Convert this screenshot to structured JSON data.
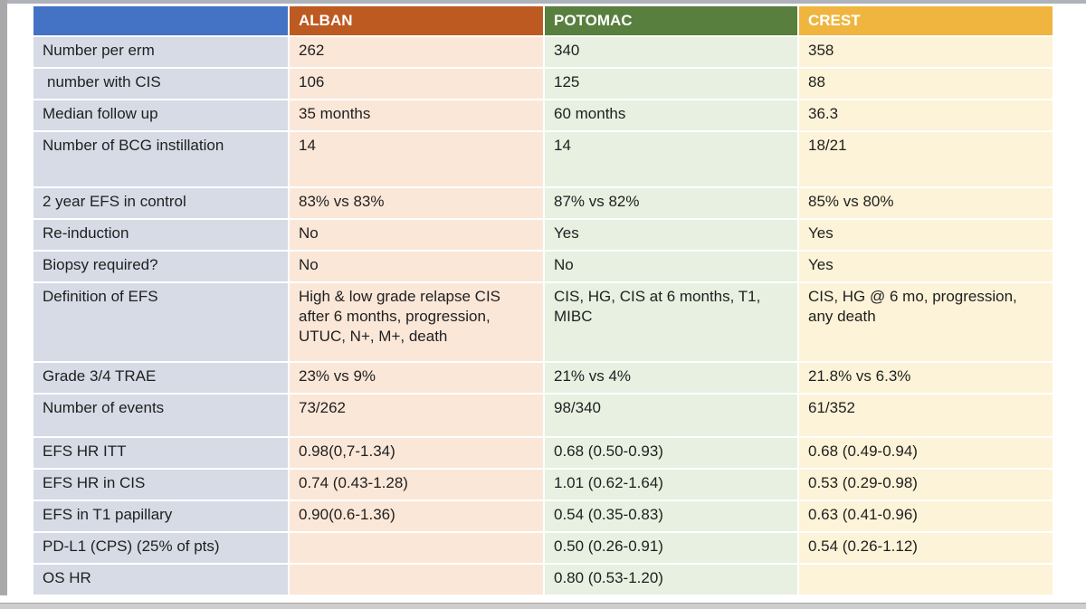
{
  "colors": {
    "header_blank": "#4472c4",
    "alban": "#bd5a21",
    "potomac": "#587f3e",
    "crest": "#f0b53f",
    "label_bg": "#d6dbe6",
    "alban_bg": "#fbe7d8",
    "potomac_bg": "#e7f0e1",
    "crest_bg": "#fdf3d8"
  },
  "table": {
    "columns": [
      "",
      "ALBAN",
      "POTOMAC",
      "CREST"
    ],
    "rows": [
      {
        "label": "Number per erm",
        "alban": "262",
        "potomac": "340",
        "crest": "358"
      },
      {
        "label": " number with CIS",
        "alban": "106",
        "potomac": "125",
        "crest": "88"
      },
      {
        "label": "Median follow up",
        "alban": "35 months",
        "potomac": "60 months",
        "crest": "36.3"
      },
      {
        "label": "Number of BCG instillation",
        "alban": "14",
        "potomac": "14",
        "crest": "18/21"
      },
      {
        "label": "2 year EFS in control",
        "alban": "83% vs 83%",
        "potomac": "87% vs 82%",
        "crest": "85% vs 80%"
      },
      {
        "label": "Re-induction",
        "alban": "No",
        "potomac": "Yes",
        "crest": "Yes"
      },
      {
        "label": "Biopsy required?",
        "alban": "No",
        "potomac": "No",
        "crest": "Yes"
      },
      {
        "label": "Definition of EFS",
        "alban": "High & low grade relapse  CIS\nafter 6 months, progression,\nUTUC, N+, M+, death",
        "potomac": "CIS, HG, CIS at 6 months, T1,\nMIBC",
        "crest": "CIS, HG @ 6 mo, progression,\nany death"
      },
      {
        "label": "Grade 3/4 TRAE",
        "alban": "23% vs 9%",
        "potomac": "21% vs 4%",
        "crest": "21.8% vs 6.3%"
      },
      {
        "label": "Number of events",
        "alban": "73/262",
        "potomac": "98/340",
        "crest": "61/352"
      },
      {
        "label": "EFS HR ITT",
        "alban": "0.98(0,7-1.34)",
        "potomac": "0.68 (0.50-0.93)",
        "crest": "0.68 (0.49-0.94)"
      },
      {
        "label": "EFS HR in CIS",
        "alban": "0.74 (0.43-1.28)",
        "potomac": "1.01 (0.62-1.64)",
        "crest": "0.53 (0.29-0.98)"
      },
      {
        "label": "EFS in T1 papillary",
        "alban": "0.90(0.6-1.36)",
        "potomac": "0.54 (0.35-0.83)",
        "crest": "0.63 (0.41-0.96)"
      },
      {
        "label": "PD-L1 (CPS) (25% of pts)",
        "alban": "",
        "potomac": "0.50 (0.26-0.91)",
        "crest": "0.54 (0.26-1.12)"
      },
      {
        "label": "OS HR",
        "alban": "",
        "potomac": "0.80 (0.53-1.20)",
        "crest": ""
      }
    ]
  }
}
